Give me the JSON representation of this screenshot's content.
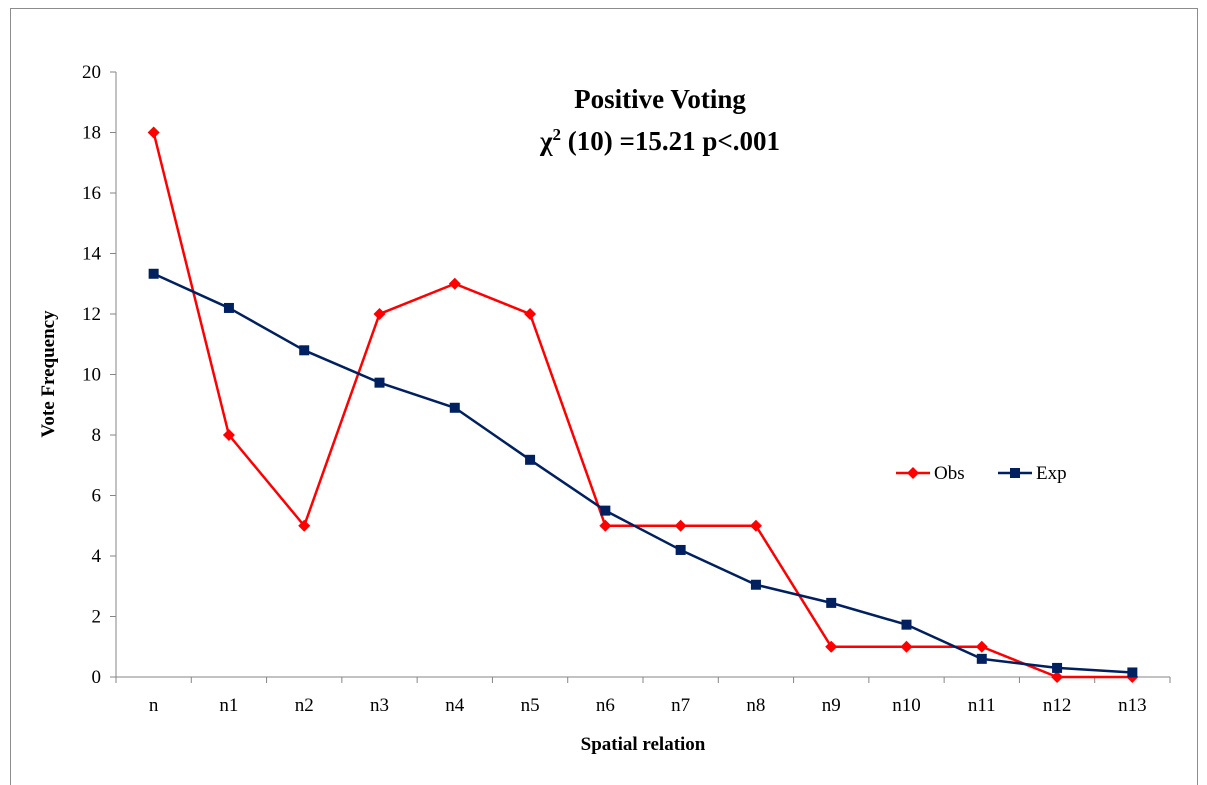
{
  "chart_data": {
    "type": "line",
    "title": "Positive Voting",
    "subtitle": "χ²  (10) =15.21 p<.001",
    "subtitle_parts": {
      "symbol": "χ",
      "sup": "2",
      "rest": "  (10) =15.21 p<.001"
    },
    "xlabel": "Spatial relation",
    "ylabel": "Vote Frequency",
    "ylim": [
      0,
      20
    ],
    "yticks": [
      "0",
      "2",
      "4",
      "6",
      "8",
      "10",
      "12",
      "14",
      "16",
      "18",
      "20"
    ],
    "categories": [
      "n",
      "n1",
      "n2",
      "n3",
      "n4",
      "n5",
      "n6",
      "n7",
      "n8",
      "n9",
      "n10",
      "n11",
      "n12",
      "n13"
    ],
    "grid": false,
    "legend_position": "right",
    "series": [
      {
        "name": "Obs",
        "color": "#ff0000",
        "marker": "diamond",
        "values": [
          18,
          8,
          5,
          12,
          13,
          12,
          5,
          5,
          5,
          1,
          1,
          1,
          0,
          0
        ]
      },
      {
        "name": "Exp",
        "color": "#002060",
        "marker": "square",
        "values": [
          13.33,
          12.2,
          10.8,
          9.73,
          8.9,
          7.18,
          5.5,
          4.2,
          3.05,
          2.45,
          1.73,
          0.6,
          0.3,
          0.15
        ]
      }
    ]
  }
}
